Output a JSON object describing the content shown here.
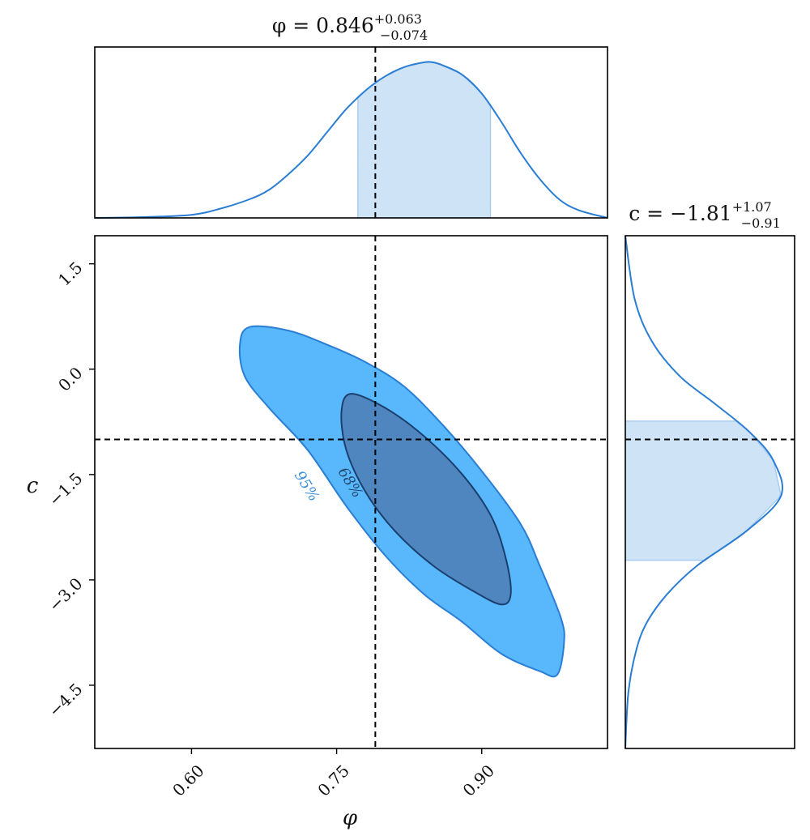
{
  "chart_data": {
    "type": "corner",
    "parameters": [
      {
        "symbol": "φ",
        "name": "phi",
        "range": [
          0.5,
          1.03
        ]
      },
      {
        "symbol": "c",
        "name": "c",
        "range": [
          -5.4,
          1.9
        ]
      }
    ],
    "truth": {
      "phi": 0.79,
      "c": -1.0
    },
    "titles": {
      "phi": {
        "prefix": "φ = 0.846",
        "sup": "+0.063",
        "sub": "−0.074"
      },
      "c": {
        "prefix": "c = −1.81",
        "sup": "+1.07",
        "sub": "−0.91"
      }
    },
    "axes": {
      "xlabel": "φ",
      "ylabel": "c",
      "xticks": [
        0.6,
        0.75,
        0.9
      ],
      "xtick_labels": [
        "0.60",
        "0.75",
        "0.90"
      ],
      "yticks": [
        1.5,
        0.0,
        -1.5,
        -3.0,
        -4.5
      ],
      "ytick_labels": [
        "1.5",
        "0.0",
        "−1.5",
        "−3.0",
        "−4.5"
      ]
    },
    "marginal_phi": {
      "x": [
        0.5,
        0.55,
        0.6,
        0.63,
        0.66,
        0.68,
        0.7,
        0.72,
        0.74,
        0.76,
        0.78,
        0.8,
        0.82,
        0.84,
        0.85,
        0.86,
        0.88,
        0.9,
        0.92,
        0.94,
        0.96,
        0.98,
        1.0,
        1.03
      ],
      "density": [
        0.0,
        0.005,
        0.02,
        0.06,
        0.12,
        0.18,
        0.28,
        0.4,
        0.55,
        0.7,
        0.82,
        0.91,
        0.97,
        1.0,
        1.0,
        0.98,
        0.92,
        0.8,
        0.62,
        0.42,
        0.25,
        0.12,
        0.05,
        0.0
      ],
      "credible_interval": [
        0.772,
        0.909
      ]
    },
    "marginal_c": {
      "y": [
        1.9,
        1.0,
        0.4,
        -0.1,
        -0.5,
        -0.9,
        -1.3,
        -1.8,
        -2.3,
        -2.8,
        -3.2,
        -3.6,
        -4.0,
        -4.6,
        -5.4
      ],
      "density": [
        0.0,
        0.06,
        0.17,
        0.35,
        0.58,
        0.8,
        0.95,
        1.0,
        0.78,
        0.46,
        0.27,
        0.14,
        0.07,
        0.02,
        0.0
      ],
      "credible_interval": [
        -2.72,
        -0.74
      ]
    },
    "contours": [
      {
        "label": "95%",
        "fill": "#58b8fb",
        "stroke": "#2a7dd4",
        "points": [
          [
            0.65,
            0.35
          ],
          [
            0.66,
            0.6
          ],
          [
            0.7,
            0.55
          ],
          [
            0.74,
            0.35
          ],
          [
            0.78,
            0.1
          ],
          [
            0.82,
            -0.25
          ],
          [
            0.86,
            -0.8
          ],
          [
            0.9,
            -1.45
          ],
          [
            0.94,
            -2.2
          ],
          [
            0.96,
            -2.8
          ],
          [
            0.982,
            -3.55
          ],
          [
            0.985,
            -3.9
          ],
          [
            0.978,
            -4.35
          ],
          [
            0.96,
            -4.3
          ],
          [
            0.92,
            -4.05
          ],
          [
            0.88,
            -3.6
          ],
          [
            0.84,
            -3.2
          ],
          [
            0.8,
            -2.65
          ],
          [
            0.76,
            -1.95
          ],
          [
            0.72,
            -1.15
          ],
          [
            0.68,
            -0.55
          ],
          [
            0.655,
            -0.1
          ]
        ]
      },
      {
        "label": "68%",
        "fill": "#4f86bf",
        "stroke": "#1b3f6e",
        "points": [
          [
            0.755,
            -0.6
          ],
          [
            0.765,
            -0.35
          ],
          [
            0.8,
            -0.55
          ],
          [
            0.84,
            -0.95
          ],
          [
            0.88,
            -1.5
          ],
          [
            0.91,
            -2.1
          ],
          [
            0.925,
            -2.7
          ],
          [
            0.93,
            -3.2
          ],
          [
            0.92,
            -3.35
          ],
          [
            0.89,
            -3.15
          ],
          [
            0.85,
            -2.8
          ],
          [
            0.81,
            -2.3
          ],
          [
            0.78,
            -1.75
          ],
          [
            0.76,
            -1.15
          ]
        ]
      }
    ],
    "contour_labels": [
      {
        "text": "95%",
        "at": [
          0.715,
          -1.7
        ],
        "color": "#3a8fd8"
      },
      {
        "text": "68%",
        "at": [
          0.76,
          -1.65
        ],
        "color": "#23476f"
      }
    ],
    "colors": {
      "line": "#2a7dd4",
      "fill_light": "#cfe3f7",
      "truth": "#000000"
    }
  }
}
